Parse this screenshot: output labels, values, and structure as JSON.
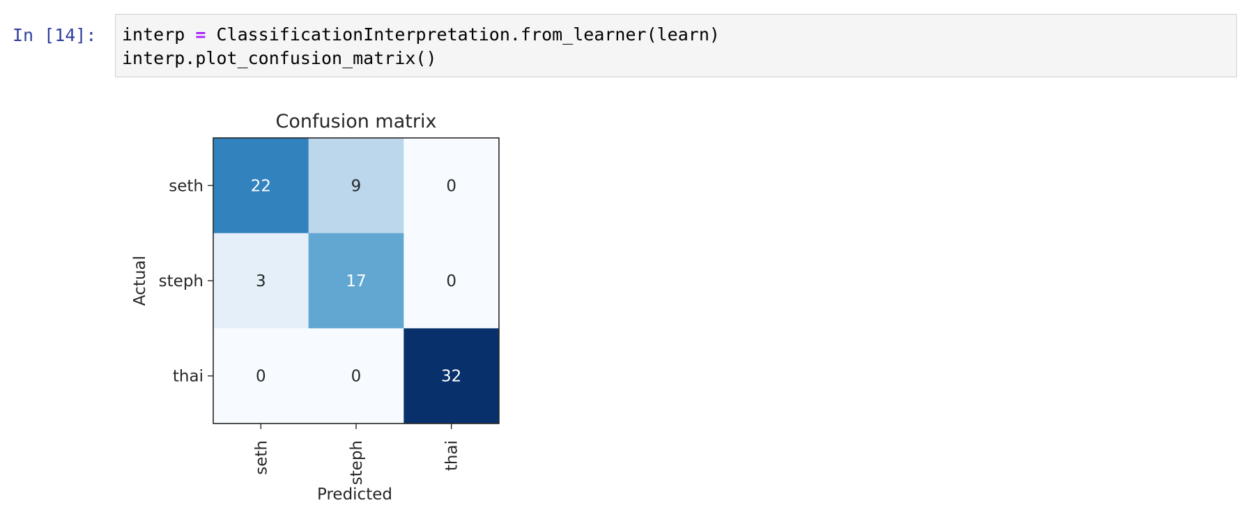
{
  "cell": {
    "prompt": "In [14]:",
    "code": {
      "line1_a": "interp ",
      "line1_op": "=",
      "line1_b": " ClassificationInterpretation.from_learner(learn)",
      "line2": "interp.plot_confusion_matrix()"
    }
  },
  "chart_data": {
    "type": "heatmap",
    "title": "Confusion matrix",
    "xlabel": "Predicted",
    "ylabel": "Actual",
    "x_categories": [
      "seth",
      "steph",
      "thai"
    ],
    "y_categories": [
      "seth",
      "steph",
      "thai"
    ],
    "values": [
      [
        22,
        9,
        0
      ],
      [
        3,
        17,
        0
      ],
      [
        0,
        0,
        32
      ]
    ],
    "colormap": "Blues",
    "colors": {
      "text_light": "#ffffff",
      "text_dark": "#262626"
    }
  }
}
